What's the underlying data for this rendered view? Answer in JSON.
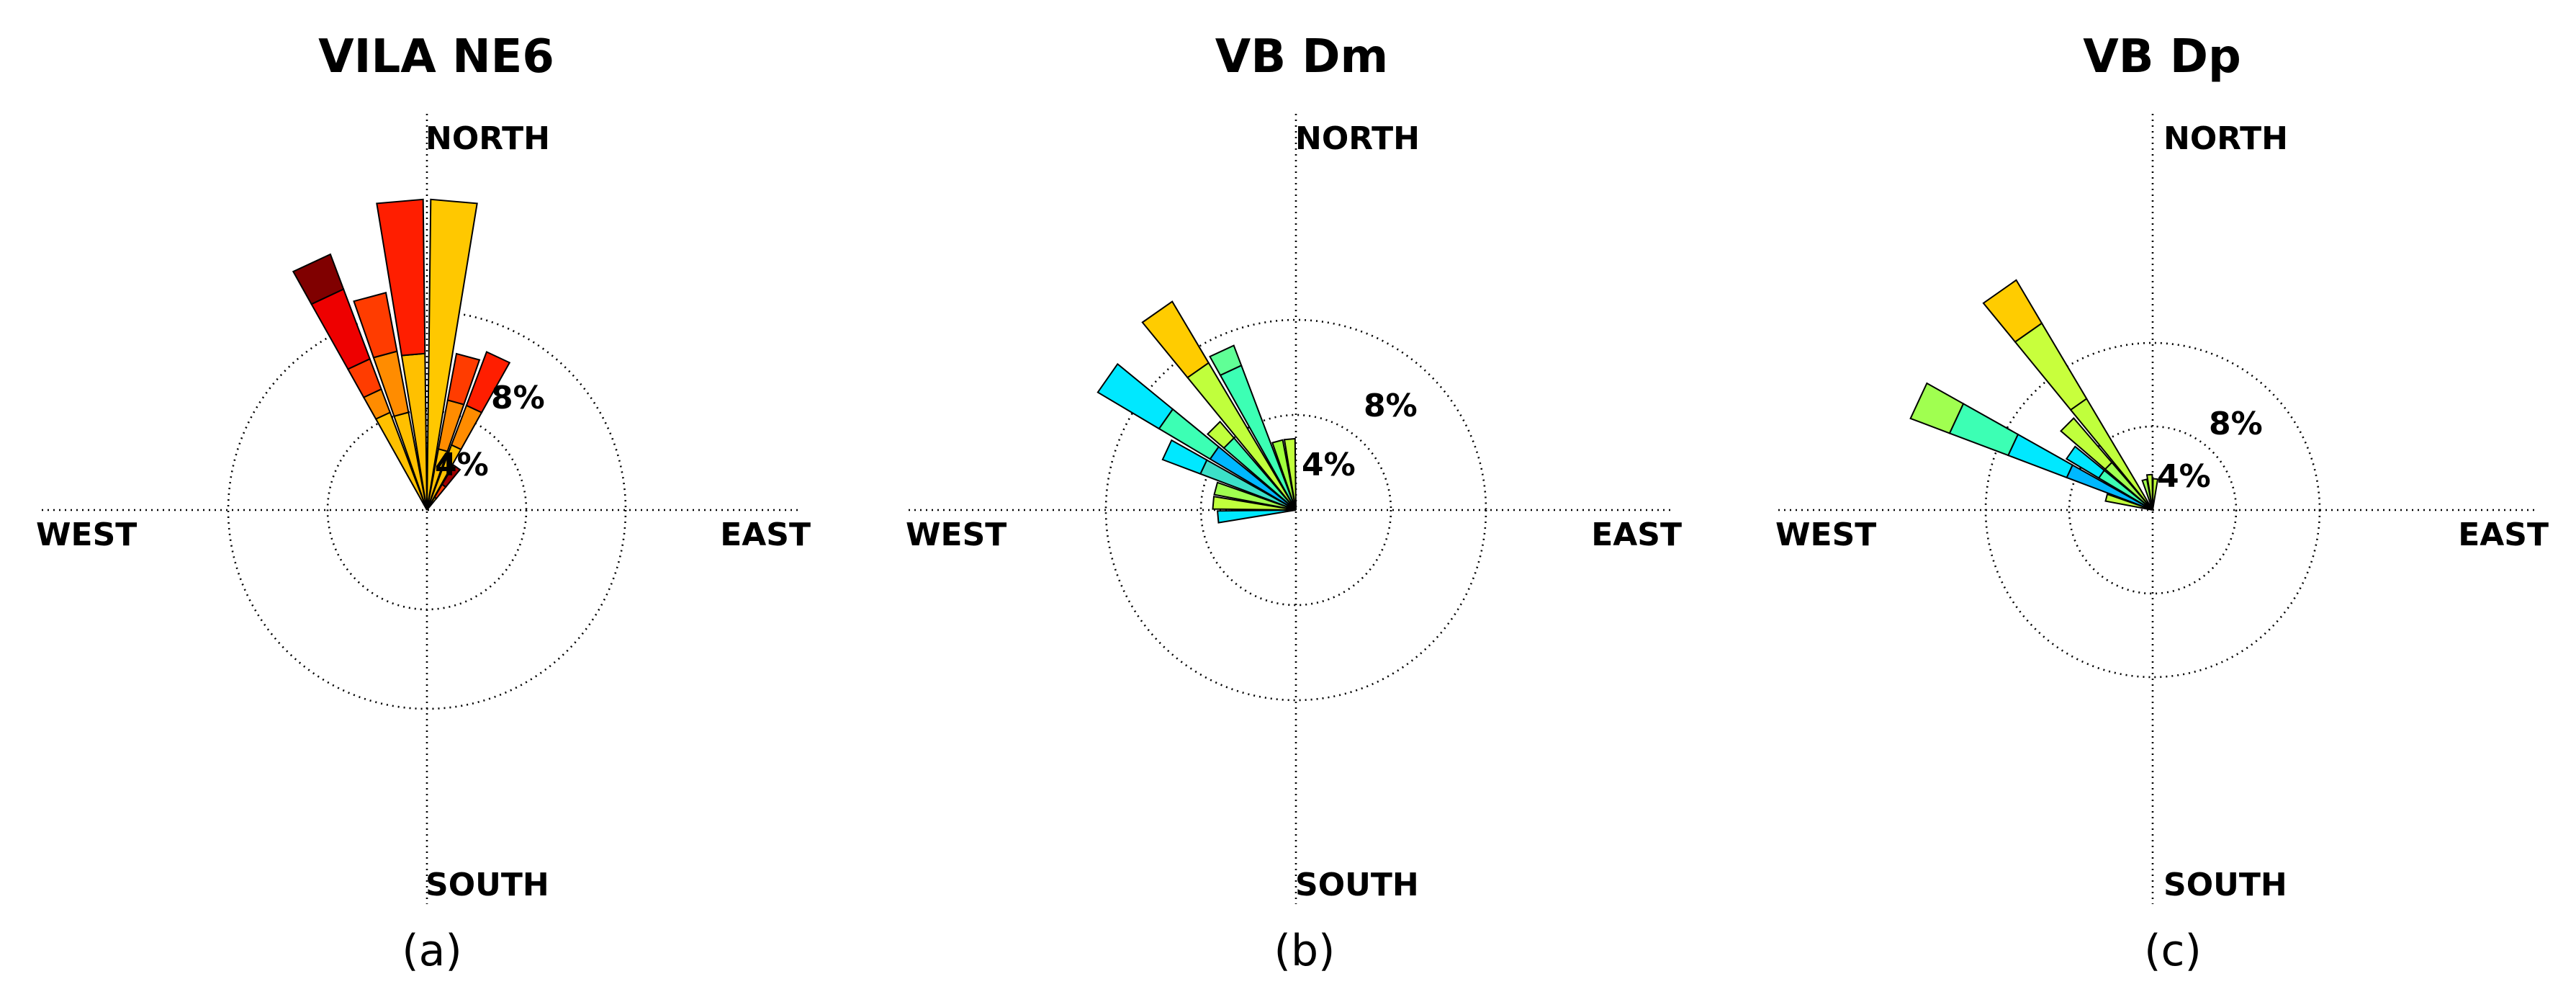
{
  "chart_data": [
    {
      "type": "windrose",
      "title": "VILA NE6",
      "caption": "(a)",
      "directions": [
        "NORTH",
        "EAST",
        "SOUTH",
        "WEST"
      ],
      "ring_labels": [
        "4%",
        "8%"
      ],
      "ring_values": [
        4,
        8
      ],
      "bins": [
        {
          "dir": -25,
          "segments": [
            {
              "value": 4.2,
              "color": "#ffc000"
            },
            {
              "value": 1.0,
              "color": "#ff8c00"
            },
            {
              "value": 1.3,
              "color": "#ff3c00"
            },
            {
              "value": 3.0,
              "color": "#ee0000"
            },
            {
              "value": 1.5,
              "color": "#800000"
            }
          ]
        },
        {
          "dir": -15,
          "segments": [
            {
              "value": 4.0,
              "color": "#ffc000"
            },
            {
              "value": 2.5,
              "color": "#ff8c00"
            },
            {
              "value": 2.4,
              "color": "#ff3c00"
            }
          ]
        },
        {
          "dir": -5,
          "segments": [
            {
              "value": 6.3,
              "color": "#ffc000"
            },
            {
              "value": 6.2,
              "color": "#ff1e00"
            }
          ]
        },
        {
          "dir": 5,
          "segments": [
            {
              "value": 12.5,
              "color": "#ffc800"
            }
          ]
        },
        {
          "dir": 15,
          "segments": [
            {
              "value": 2.5,
              "color": "#ffc000"
            },
            {
              "value": 2.0,
              "color": "#ff8c00"
            },
            {
              "value": 1.9,
              "color": "#ff3c00"
            }
          ]
        },
        {
          "dir": 25,
          "segments": [
            {
              "value": 2.8,
              "color": "#ffc000"
            },
            {
              "value": 1.7,
              "color": "#ff8c00"
            },
            {
              "value": 2.3,
              "color": "#ff1e00"
            }
          ]
        },
        {
          "dir": 35,
          "segments": [
            {
              "value": 0.6,
              "color": "#ffc000"
            },
            {
              "value": 0.6,
              "color": "#ff3c00"
            },
            {
              "value": 0.9,
              "color": "#a00000"
            }
          ]
        }
      ]
    },
    {
      "type": "windrose",
      "title": "VB Dm",
      "caption": "(b)",
      "directions": [
        "NORTH",
        "EAST",
        "SOUTH",
        "WEST"
      ],
      "ring_labels": [
        "4%",
        "8%"
      ],
      "ring_values": [
        4,
        8
      ],
      "bins": [
        {
          "dir": -95,
          "segments": [
            {
              "value": 3.3,
              "color": "#00e8ff"
            }
          ]
        },
        {
          "dir": -85,
          "segments": [
            {
              "value": 3.5,
              "color": "#c0ff3c"
            }
          ]
        },
        {
          "dir": -75,
          "segments": [
            {
              "value": 3.5,
              "color": "#a0ff50"
            }
          ]
        },
        {
          "dir": -65,
          "segments": [
            {
              "value": 4.3,
              "color": "#3ce0c8"
            },
            {
              "value": 1.7,
              "color": "#00e8ff"
            }
          ]
        },
        {
          "dir": -55,
          "segments": [
            {
              "value": 4.2,
              "color": "#00b8ff"
            },
            {
              "value": 2.5,
              "color": "#3cffb4"
            },
            {
              "value": 3.0,
              "color": "#00e8ff"
            }
          ]
        },
        {
          "dir": -45,
          "segments": [
            {
              "value": 4.0,
              "color": "#3cffb4"
            },
            {
              "value": 0.9,
              "color": "#c0ff3c"
            }
          ]
        },
        {
          "dir": -35,
          "segments": [
            {
              "value": 7.2,
              "color": "#c0ff3c"
            },
            {
              "value": 3.0,
              "color": "#ffcc00"
            }
          ]
        },
        {
          "dir": -25,
          "segments": [
            {
              "value": 6.5,
              "color": "#3cffb4"
            },
            {
              "value": 0.9,
              "color": "#60ff96"
            }
          ]
        },
        {
          "dir": -15,
          "segments": [
            {
              "value": 3.0,
              "color": "#a0ff3c"
            }
          ]
        },
        {
          "dir": -5,
          "segments": [
            {
              "value": 3.0,
              "color": "#c0ff3c"
            }
          ]
        }
      ]
    },
    {
      "type": "windrose",
      "title": "VB Dp",
      "caption": "(c)",
      "directions": [
        "NORTH",
        "EAST",
        "SOUTH",
        "WEST"
      ],
      "ring_labels": [
        "4%",
        "8%"
      ],
      "ring_values": [
        4,
        8
      ],
      "bins": [
        {
          "dir": -75,
          "segments": [
            {
              "value": 2.3,
              "color": "#c0ff3c"
            }
          ]
        },
        {
          "dir": -65,
          "segments": [
            {
              "value": 4.4,
              "color": "#00b8ff"
            },
            {
              "value": 3.0,
              "color": "#00e8ff"
            },
            {
              "value": 3.0,
              "color": "#3cffb4"
            },
            {
              "value": 2.0,
              "color": "#a0ff50"
            }
          ]
        },
        {
          "dir": -55,
          "segments": [
            {
              "value": 3.0,
              "color": "#3cffb4"
            },
            {
              "value": 1.8,
              "color": "#00e8ff"
            }
          ]
        },
        {
          "dir": -45,
          "segments": [
            {
              "value": 3.0,
              "color": "#a0ff50"
            },
            {
              "value": 2.8,
              "color": "#c0ff3c"
            }
          ]
        },
        {
          "dir": -35,
          "segments": [
            {
              "value": 6.2,
              "color": "#c0ff3c"
            },
            {
              "value": 4.2,
              "color": "#c8ff3c"
            },
            {
              "value": 2.4,
              "color": "#ffcc00"
            }
          ]
        },
        {
          "dir": -15,
          "segments": [
            {
              "value": 1.5,
              "color": "#a0ff50"
            }
          ]
        },
        {
          "dir": -5,
          "segments": [
            {
              "value": 1.7,
              "color": "#c0ff3c"
            }
          ]
        },
        {
          "dir": 5,
          "segments": [
            {
              "value": 1.5,
              "color": "#c0ff3c"
            }
          ]
        }
      ]
    }
  ]
}
